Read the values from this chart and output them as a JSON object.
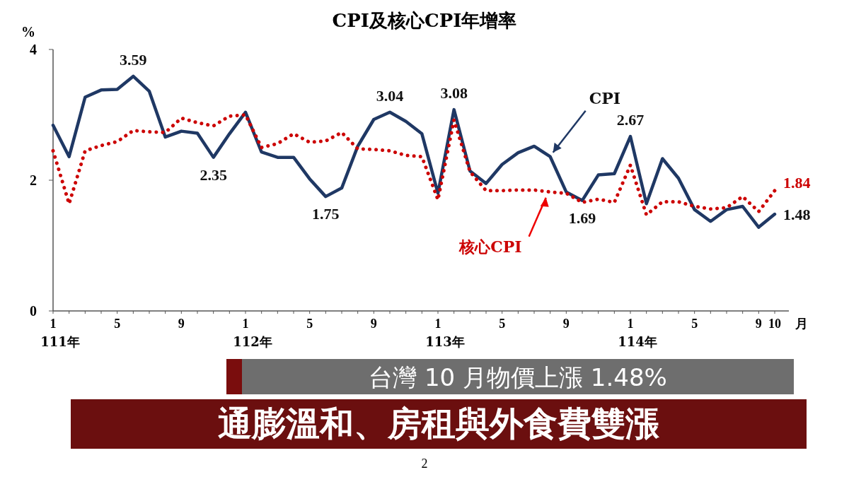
{
  "chart_data": {
    "type": "line",
    "title": "CPI及核心CPI年增率",
    "ylabel": "%",
    "xlabel": "月",
    "categories": [
      "1",
      null,
      null,
      null,
      "5",
      null,
      null,
      null,
      "9",
      null,
      null,
      null,
      "1",
      null,
      null,
      null,
      "5",
      null,
      null,
      null,
      "9",
      null,
      null,
      null,
      "1",
      null,
      null,
      null,
      "5",
      null,
      null,
      null,
      "9",
      null,
      null,
      null,
      "1",
      null,
      null,
      null,
      "5",
      null,
      null,
      null,
      "9",
      "10"
    ],
    "series": [
      {
        "name": "CPI",
        "color": "#1f3864",
        "line_style": "solid",
        "values": [
          2.84,
          2.36,
          3.27,
          3.38,
          3.39,
          3.59,
          3.36,
          2.66,
          2.75,
          2.72,
          2.35,
          2.71,
          3.04,
          2.43,
          2.35,
          2.35,
          2.02,
          1.75,
          1.88,
          2.52,
          2.93,
          3.04,
          2.9,
          2.71,
          1.8,
          3.08,
          2.14,
          1.95,
          2.24,
          2.42,
          2.52,
          2.36,
          1.82,
          1.69,
          2.08,
          2.1,
          2.67,
          1.64,
          2.33,
          2.03,
          1.55,
          1.37,
          1.55,
          1.6,
          1.28,
          1.48
        ],
        "value_labels": [
          null,
          null,
          null,
          null,
          null,
          "3.59",
          null,
          null,
          null,
          null,
          "2.35",
          null,
          null,
          null,
          null,
          null,
          null,
          "1.75",
          null,
          null,
          null,
          "3.04",
          null,
          null,
          null,
          "3.08",
          null,
          null,
          null,
          null,
          null,
          null,
          null,
          "1.69",
          null,
          null,
          "2.67",
          null,
          null,
          null,
          null,
          null,
          null,
          null,
          null,
          "1.48"
        ]
      },
      {
        "name": "核心CPI",
        "color": "#cc0000",
        "line_style": "dotted",
        "values": [
          2.45,
          1.64,
          2.45,
          2.53,
          2.59,
          2.76,
          2.74,
          2.73,
          2.95,
          2.88,
          2.83,
          2.98,
          3.0,
          2.5,
          2.56,
          2.71,
          2.58,
          2.6,
          2.73,
          2.48,
          2.47,
          2.45,
          2.38,
          2.36,
          1.7,
          2.92,
          2.13,
          1.84,
          1.84,
          1.85,
          1.85,
          1.82,
          1.8,
          1.66,
          1.71,
          1.66,
          2.23,
          1.47,
          1.67,
          1.67,
          1.6,
          1.56,
          1.58,
          1.75,
          1.52,
          1.84
        ],
        "value_labels": [
          null,
          null,
          null,
          null,
          null,
          null,
          null,
          null,
          null,
          null,
          null,
          null,
          null,
          null,
          null,
          null,
          null,
          null,
          null,
          null,
          null,
          null,
          null,
          null,
          null,
          null,
          null,
          null,
          null,
          null,
          null,
          null,
          null,
          null,
          null,
          null,
          null,
          null,
          null,
          null,
          null,
          null,
          null,
          null,
          null,
          "1.84"
        ]
      }
    ],
    "ylim": [
      0,
      4
    ],
    "yticks": [
      0,
      2,
      4
    ],
    "marker": "none",
    "legend": false,
    "grid": false,
    "annotations": [
      "台灣 10 月物價上漲 1.48%",
      "通膨溫和、房租與外食費雙漲",
      "111年",
      "112年",
      "113年",
      "114年",
      "2"
    ]
  }
}
